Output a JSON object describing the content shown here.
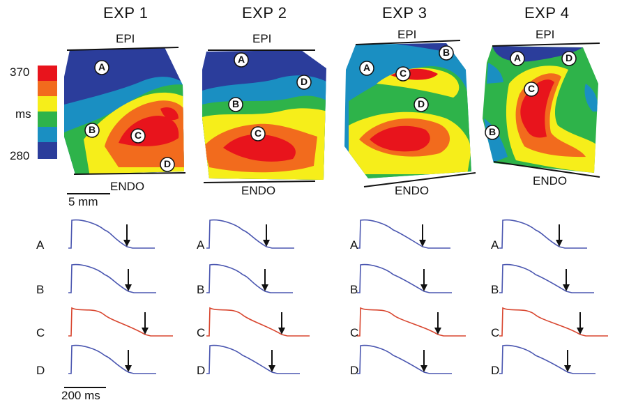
{
  "experiments": [
    {
      "title": "EXP 1",
      "epi": "EPI",
      "endo": "ENDO",
      "markers": [
        "A",
        "B",
        "C",
        "D"
      ]
    },
    {
      "title": "EXP 2",
      "epi": "EPI",
      "endo": "ENDO",
      "markers": [
        "A",
        "B",
        "C",
        "D"
      ]
    },
    {
      "title": "EXP 3",
      "epi": "EPI",
      "endo": "ENDO",
      "markers": [
        "A",
        "B",
        "C",
        "D"
      ]
    },
    {
      "title": "EXP 4",
      "epi": "EPI",
      "endo": "ENDO",
      "markers": [
        "A",
        "B",
        "C",
        "D"
      ]
    }
  ],
  "colorbar": {
    "max_label": "370",
    "unit_label": "ms",
    "min_label": "280",
    "colors": [
      "#e8141c",
      "#f26b1d",
      "#f6ee1a",
      "#2eb34a",
      "#1a8fc2",
      "#2b3d9b"
    ]
  },
  "scale_map": "5 mm",
  "scale_time": "200 ms",
  "trace_rows": [
    "A",
    "B",
    "C",
    "D"
  ],
  "trace_colors": {
    "normal": "#4a56b0",
    "highlight": "#d8452e"
  }
}
